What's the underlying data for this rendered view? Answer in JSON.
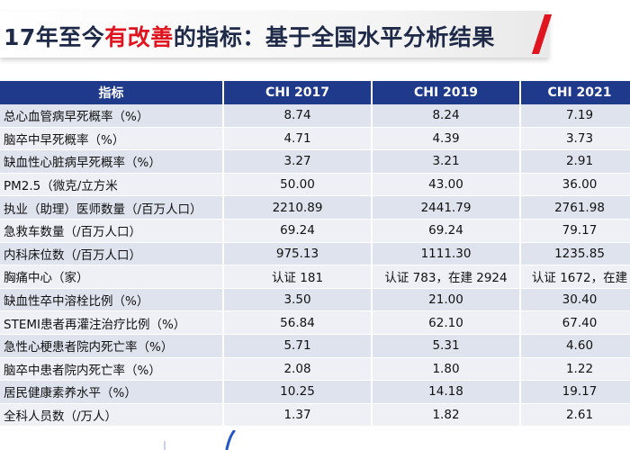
{
  "title": {
    "prefix": "17年至今",
    "highlight": "有改善",
    "suffix": "的指标：基于全国水平分析结果"
  },
  "table": {
    "headers": [
      "指标",
      "CHI 2017",
      "CHI 2019",
      "CHI 2021"
    ],
    "rows": [
      {
        "name": "总心血管病早死概率（%）",
        "v2017": "8.74",
        "v2019": "8.24",
        "v2021": "7.19"
      },
      {
        "name": "脑卒中早死概率（%）",
        "v2017": "4.71",
        "v2019": "4.39",
        "v2021": "3.73"
      },
      {
        "name": "缺血性心脏病早死概率（%）",
        "v2017": "3.27",
        "v2019": "3.21",
        "v2021": "2.91"
      },
      {
        "name": "PM2.5（微克/立方米",
        "v2017": "50.00",
        "v2019": "43.00",
        "v2021": "36.00"
      },
      {
        "name": "执业（助理）医师数量（/百万人口）",
        "v2017": "2210.89",
        "v2019": "2441.79",
        "v2021": "2761.98"
      },
      {
        "name": "急救车数量（/百万人口）",
        "v2017": "69.24",
        "v2019": "69.24",
        "v2021": "79.17"
      },
      {
        "name": "内科床位数（/百万人口）",
        "v2017": "975.13",
        "v2019": "1111.30",
        "v2021": "1235.85"
      },
      {
        "name": "胸痛中心（家）",
        "v2017": "认证 181",
        "v2019": "认证 783，在建 2924",
        "v2021": "认证 1672，在建"
      },
      {
        "name": "缺血性卒中溶栓比例（%）",
        "v2017": "3.50",
        "v2019": "21.00",
        "v2021": "30.40"
      },
      {
        "name": "STEMI患者再灌注治疗比例（%）",
        "v2017": "56.84",
        "v2019": "62.10",
        "v2021": "67.40"
      },
      {
        "name": "急性心梗患者院内死亡率（%）",
        "v2017": "5.71",
        "v2019": "5.31",
        "v2021": "4.60"
      },
      {
        "name": "脑卒中患者院内死亡率（%）",
        "v2017": "2.08",
        "v2019": "1.80",
        "v2021": "1.22"
      },
      {
        "name": "居民健康素养水平（%）",
        "v2017": "10.25",
        "v2019": "14.18",
        "v2021": "19.17"
      },
      {
        "name": "全科人员数（/万人）",
        "v2017": "1.37",
        "v2019": "1.82",
        "v2021": "2.61"
      }
    ]
  },
  "colors": {
    "header_bg": "#1f3a8a",
    "row_odd": "#dfe3ee",
    "row_even": "#eef0f6",
    "highlight": "#e0141e",
    "title_text": "#1e2a48"
  }
}
